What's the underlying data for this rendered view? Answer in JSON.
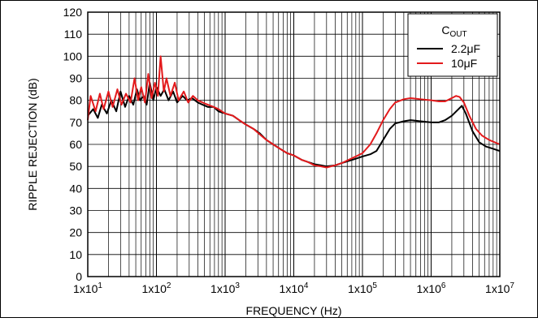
{
  "chart_data": {
    "type": "line",
    "xlabel": "FREQUENCY (Hz)",
    "ylabel": "RIPPLE REJECTION (dB)",
    "x_scale": "log",
    "xlim": [
      10,
      10000000
    ],
    "ylim": [
      0,
      120
    ],
    "grid": true,
    "legend_position": "top-right",
    "legend_title": {
      "main": "C",
      "sub": "OUT"
    },
    "x_ticks": [
      {
        "base": "1x10",
        "exp": "1"
      },
      {
        "base": "1x10",
        "exp": "2"
      },
      {
        "base": "1x10",
        "exp": "3"
      },
      {
        "base": "1x10",
        "exp": "4"
      },
      {
        "base": "1x10",
        "exp": "5"
      },
      {
        "base": "1x10",
        "exp": "6"
      },
      {
        "base": "1x10",
        "exp": "7"
      }
    ],
    "y_ticks": [
      "0",
      "10",
      "20",
      "30",
      "40",
      "50",
      "60",
      "70",
      "80",
      "90",
      "100",
      "110",
      "120"
    ],
    "series": [
      {
        "name": "2.2μF",
        "color": "#000000",
        "points": [
          [
            10,
            73
          ],
          [
            12,
            76
          ],
          [
            14,
            72
          ],
          [
            16,
            78
          ],
          [
            19,
            74
          ],
          [
            22,
            80
          ],
          [
            26,
            75
          ],
          [
            30,
            84
          ],
          [
            35,
            77
          ],
          [
            40,
            82
          ],
          [
            46,
            78
          ],
          [
            52,
            85
          ],
          [
            58,
            80
          ],
          [
            65,
            82
          ],
          [
            72,
            78
          ],
          [
            80,
            88
          ],
          [
            90,
            80
          ],
          [
            100,
            86
          ],
          [
            115,
            82
          ],
          [
            130,
            85
          ],
          [
            150,
            80
          ],
          [
            175,
            84
          ],
          [
            200,
            79
          ],
          [
            240,
            82
          ],
          [
            280,
            80
          ],
          [
            330,
            81
          ],
          [
            400,
            79
          ],
          [
            470,
            78
          ],
          [
            560,
            77
          ],
          [
            680,
            77
          ],
          [
            800,
            75
          ],
          [
            1000,
            74
          ],
          [
            1300,
            73
          ],
          [
            1600,
            71
          ],
          [
            2000,
            69
          ],
          [
            2600,
            67
          ],
          [
            3200,
            65
          ],
          [
            4000,
            62
          ],
          [
            5000,
            60
          ],
          [
            6300,
            58
          ],
          [
            8000,
            56
          ],
          [
            10000,
            55
          ],
          [
            13000,
            53
          ],
          [
            16000,
            52
          ],
          [
            20000,
            51
          ],
          [
            25000,
            50.5
          ],
          [
            30000,
            50
          ],
          [
            40000,
            50.5
          ],
          [
            50000,
            51.5
          ],
          [
            63000,
            52.5
          ],
          [
            80000,
            53.5
          ],
          [
            100000,
            54.5
          ],
          [
            130000,
            55.5
          ],
          [
            160000,
            57
          ],
          [
            200000,
            62
          ],
          [
            250000,
            67
          ],
          [
            300000,
            69.5
          ],
          [
            400000,
            70.5
          ],
          [
            500000,
            71
          ],
          [
            700000,
            70.5
          ],
          [
            1000000,
            70
          ],
          [
            1300000,
            70
          ],
          [
            1600000,
            71
          ],
          [
            2000000,
            73
          ],
          [
            2500000,
            76
          ],
          [
            2800000,
            77.5
          ],
          [
            3200000,
            74
          ],
          [
            4000000,
            66
          ],
          [
            5000000,
            61
          ],
          [
            6300000,
            59
          ],
          [
            8000000,
            58
          ],
          [
            10000000,
            57
          ]
        ]
      },
      {
        "name": "10μF",
        "color": "#e31a1c",
        "points": [
          [
            10,
            71
          ],
          [
            11,
            82
          ],
          [
            13,
            75
          ],
          [
            15,
            83
          ],
          [
            17,
            76
          ],
          [
            20,
            84
          ],
          [
            23,
            77
          ],
          [
            27,
            85
          ],
          [
            31,
            78
          ],
          [
            36,
            83
          ],
          [
            42,
            79
          ],
          [
            48,
            90
          ],
          [
            54,
            80
          ],
          [
            60,
            86
          ],
          [
            68,
            79
          ],
          [
            76,
            92
          ],
          [
            85,
            81
          ],
          [
            95,
            88
          ],
          [
            105,
            82
          ],
          [
            115,
            100
          ],
          [
            128,
            84
          ],
          [
            140,
            90
          ],
          [
            160,
            82
          ],
          [
            185,
            88
          ],
          [
            210,
            80
          ],
          [
            250,
            84
          ],
          [
            290,
            79
          ],
          [
            340,
            82
          ],
          [
            400,
            80
          ],
          [
            470,
            79
          ],
          [
            560,
            78
          ],
          [
            680,
            77
          ],
          [
            800,
            76
          ],
          [
            1000,
            74
          ],
          [
            1300,
            73
          ],
          [
            1600,
            71
          ],
          [
            2000,
            69
          ],
          [
            2600,
            67
          ],
          [
            3200,
            64.5
          ],
          [
            4000,
            62
          ],
          [
            5000,
            60
          ],
          [
            6300,
            58
          ],
          [
            8000,
            56
          ],
          [
            10000,
            55
          ],
          [
            13000,
            53
          ],
          [
            16000,
            52
          ],
          [
            20000,
            50.5
          ],
          [
            25000,
            50
          ],
          [
            30000,
            49.5
          ],
          [
            40000,
            50.5
          ],
          [
            50000,
            51.5
          ],
          [
            63000,
            53
          ],
          [
            80000,
            54.5
          ],
          [
            100000,
            56
          ],
          [
            130000,
            60
          ],
          [
            160000,
            65
          ],
          [
            200000,
            71
          ],
          [
            250000,
            76
          ],
          [
            300000,
            79
          ],
          [
            400000,
            80.5
          ],
          [
            500000,
            81
          ],
          [
            700000,
            80.5
          ],
          [
            1000000,
            80
          ],
          [
            1300000,
            79.5
          ],
          [
            1600000,
            79.5
          ],
          [
            2000000,
            81
          ],
          [
            2300000,
            82
          ],
          [
            2600000,
            81.5
          ],
          [
            3000000,
            79
          ],
          [
            3600000,
            73
          ],
          [
            4500000,
            67
          ],
          [
            5500000,
            64
          ],
          [
            7000000,
            62
          ],
          [
            10000000,
            60
          ]
        ]
      }
    ]
  }
}
